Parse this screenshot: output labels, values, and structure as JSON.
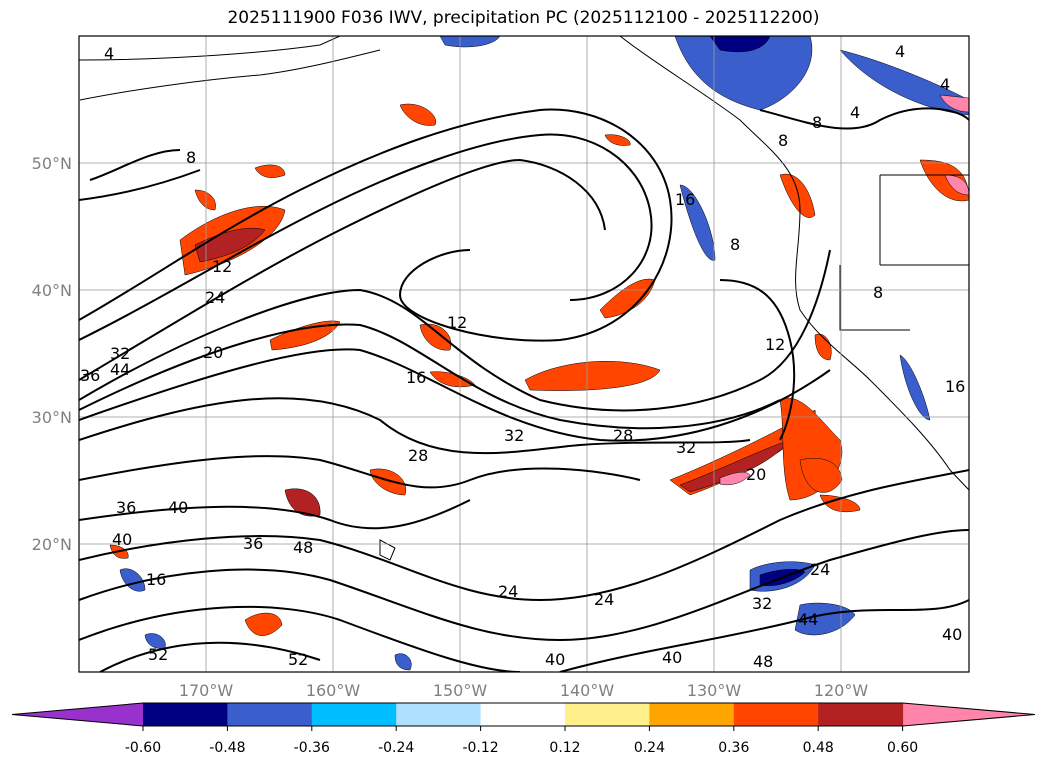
{
  "title": "2025111900 F036 IWV, precipitation PC (2025112100 - 2025112200)",
  "map": {
    "lat_labels": [
      "50°N",
      "40°N",
      "30°N",
      "20°N"
    ],
    "lon_labels": [
      "170°W",
      "160°W",
      "150°W",
      "140°W",
      "130°W",
      "120°W"
    ],
    "extent": {
      "lon_min": -180,
      "lon_max": -110,
      "lat_min": 10,
      "lat_max": 60
    },
    "contour_labels": [
      "4",
      "4",
      "4",
      "8",
      "8",
      "8",
      "8",
      "12",
      "12",
      "12",
      "16",
      "16",
      "16",
      "20",
      "20",
      "24",
      "24",
      "24",
      "24",
      "28",
      "28",
      "32",
      "32",
      "32",
      "32",
      "36",
      "36",
      "36",
      "40",
      "40",
      "40",
      "40",
      "40",
      "44",
      "44",
      "48",
      "48",
      "52",
      "52",
      "16",
      "8",
      "4"
    ]
  },
  "colorbar": {
    "ticks": [
      "-0.60",
      "-0.48",
      "-0.36",
      "-0.24",
      "-0.12",
      "0.12",
      "0.24",
      "0.36",
      "0.48",
      "0.60"
    ],
    "colors": [
      "#9932cc",
      "#000080",
      "#3a5fcd",
      "#00bfff",
      "#b0e0ff",
      "#ffffff",
      "#fff08c",
      "#ffa500",
      "#ff4500",
      "#b22222",
      "#ff85aa"
    ]
  }
}
